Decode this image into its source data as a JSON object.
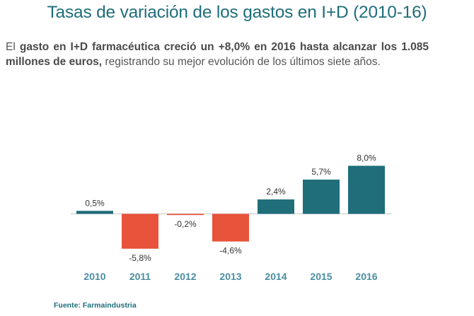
{
  "header": {
    "title": "Tasas de variación de los gastos en I+D (2010-16)"
  },
  "intro": {
    "part1": "El ",
    "bold1": "gasto en I+D farmacéutica creció un +8,0% en 2016 hasta alcanzar los 1.085 millones de euros,",
    "part2": " registrando su mejor evolución de los últimos siete años."
  },
  "footer": {
    "source": "Fuente: Farmaindustria"
  },
  "colors": {
    "positive": "#1f6e7a",
    "negative": "#e8533b",
    "title": "#1f6e7a",
    "axis": "#c8c8c8",
    "tick_label": "#4a8ea0",
    "value_label": "#333333"
  },
  "chart_data": {
    "type": "bar",
    "title": "Tasas de variación de los gastos en I+D (2010-16)",
    "xlabel": "",
    "ylabel": "",
    "categories": [
      "2010",
      "2011",
      "2012",
      "2013",
      "2014",
      "2015",
      "2016"
    ],
    "values": [
      0.5,
      -5.8,
      -0.2,
      -4.6,
      2.4,
      5.7,
      8.0
    ],
    "value_labels": [
      "0,5%",
      "-5,8%",
      "-0,2%",
      "-4,6%",
      "2,4%",
      "5,7%",
      "8,0%"
    ],
    "ylim": [
      -6,
      8
    ],
    "grid": false,
    "legend": "none"
  }
}
